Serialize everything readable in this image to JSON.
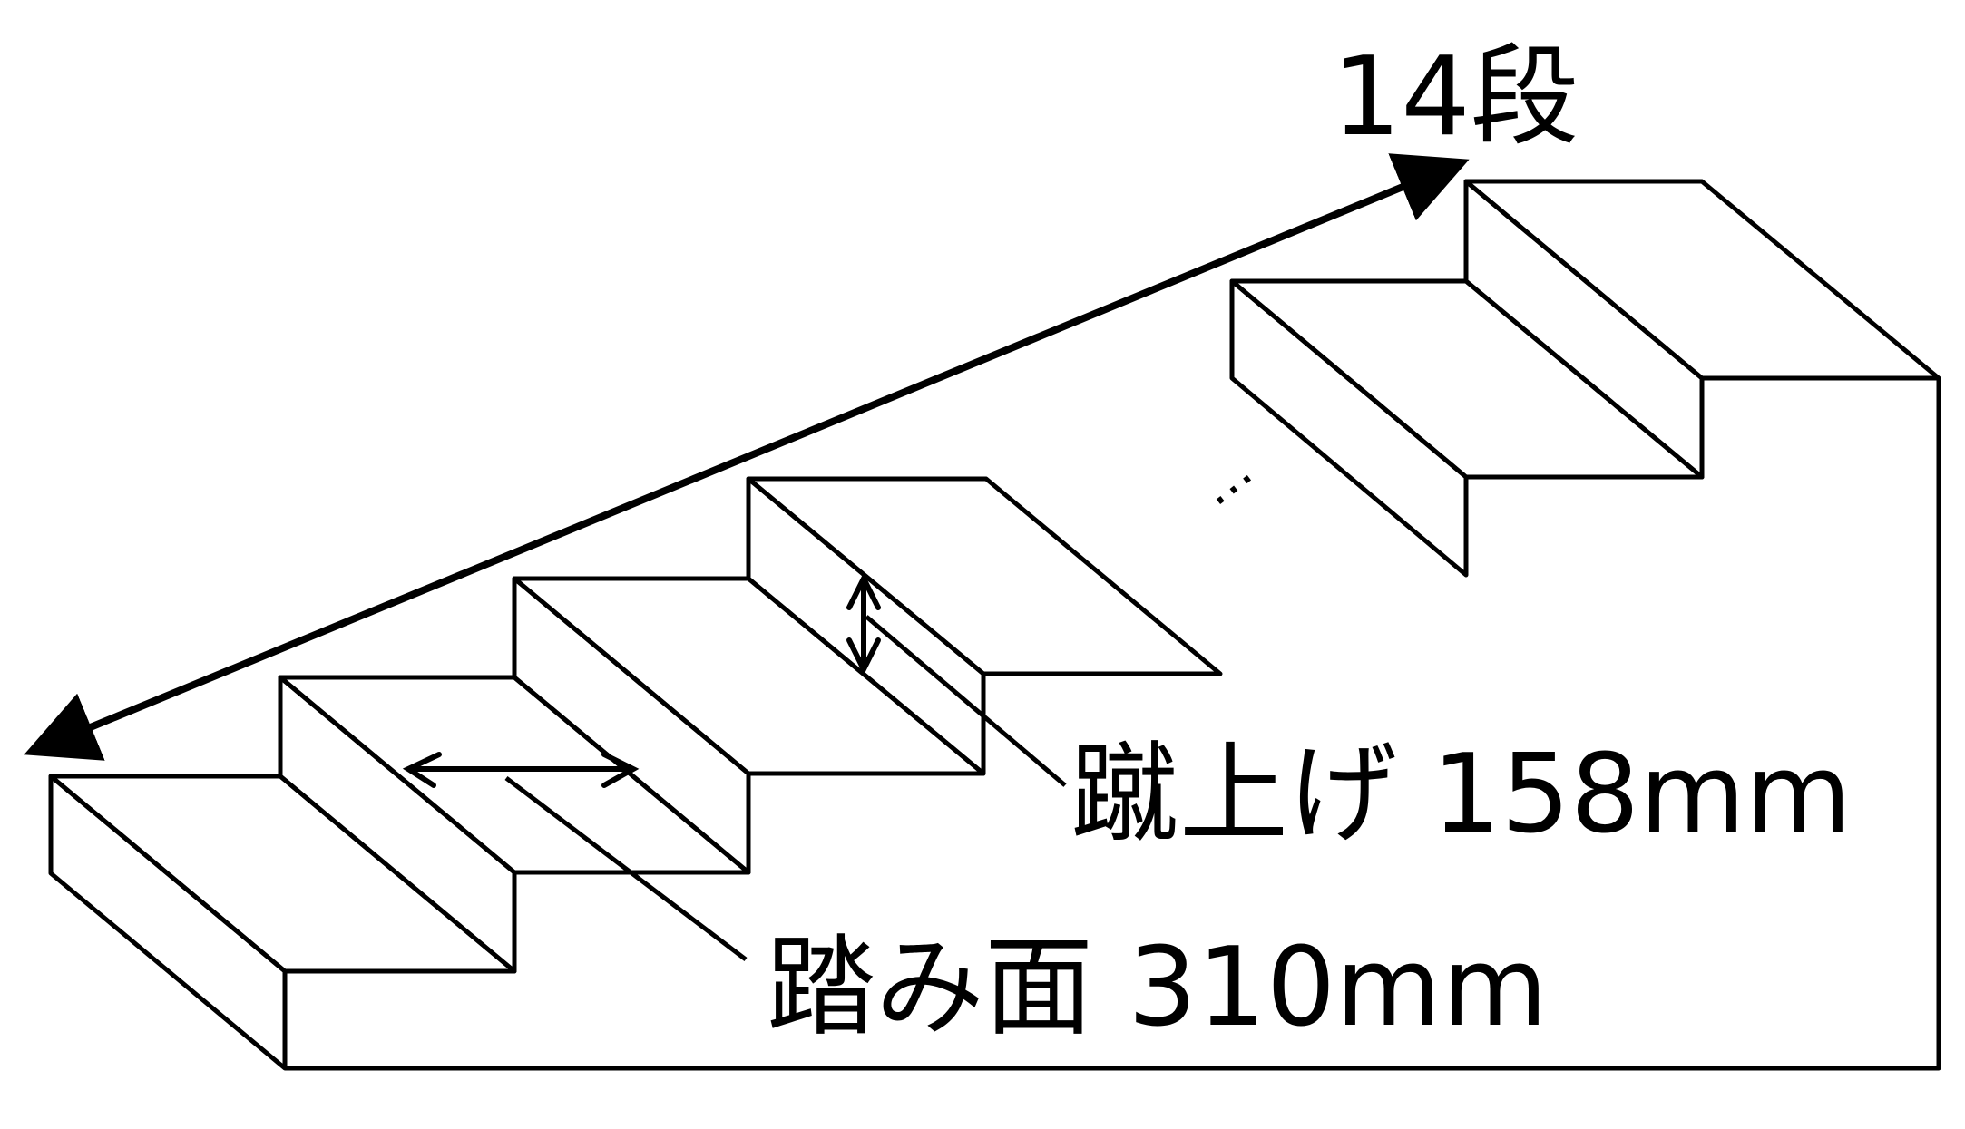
{
  "labels": {
    "step_count": "14段",
    "riser": "蹴上げ 158mm",
    "tread": "踏み面 310mm",
    "ellipsis": "…"
  },
  "colors": {
    "line": "#000000",
    "background": "#ffffff"
  }
}
